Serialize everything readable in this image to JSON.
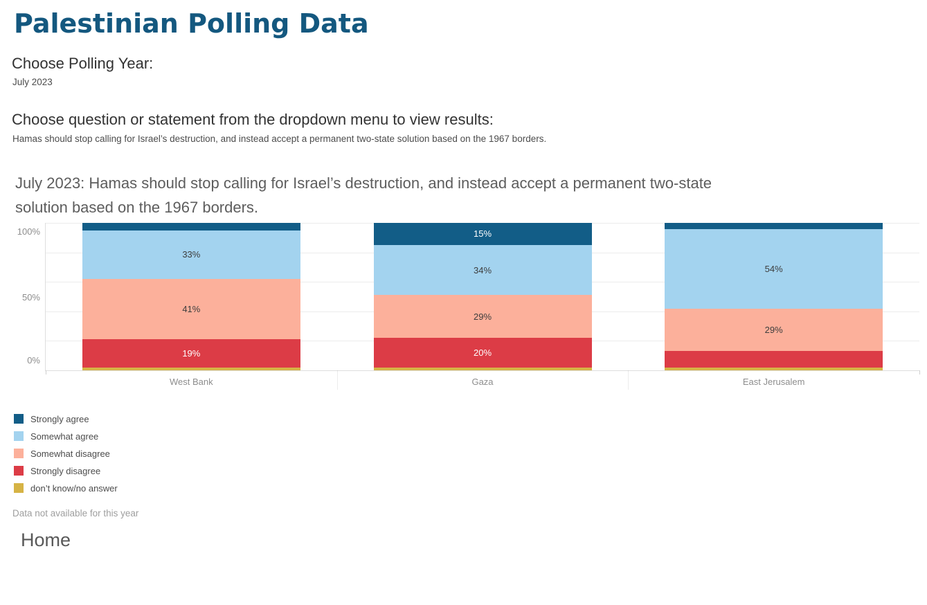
{
  "page": {
    "title": "Palestinian Polling Data",
    "year_section": {
      "label": "Choose Polling Year:",
      "value": "July 2023"
    },
    "question_section": {
      "label": "Choose question or statement from the dropdown menu to view results:",
      "value": "Hamas should stop calling for Israel’s destruction, and instead accept a permanent two-state solution based on the 1967 borders."
    },
    "chart_title_line1": "July 2023: Hamas should stop calling for Israel’s destruction, and instead accept a permanent two-state",
    "chart_title_line2": "solution based on the 1967 borders.",
    "footer_note": "Data not available for this year",
    "home_link": "Home"
  },
  "chart_data": {
    "type": "bar",
    "stacked": true,
    "normalized": true,
    "title": "July 2023: Hamas should stop calling for Israel’s destruction, and instead accept a permanent two-state solution based on the 1967 borders.",
    "categories": [
      "West Bank",
      "Gaza",
      "East Jerusalem"
    ],
    "xlabel": "",
    "ylabel": "",
    "ylim": [
      0,
      100
    ],
    "y_ticks": [
      "0%",
      "50%",
      "100%"
    ],
    "gridline_interval_pct": 20,
    "legend_position": "bottom-left",
    "series": [
      {
        "name": "Strongly agree",
        "color": "#125d87",
        "label_color": "#ffffff",
        "values": [
          5,
          15,
          4
        ],
        "labels": [
          null,
          "15%",
          null
        ]
      },
      {
        "name": "Somewhat agree",
        "color": "#a3d3ef",
        "label_color": "#3d3d3d",
        "values": [
          33,
          34,
          54
        ],
        "labels": [
          "33%",
          "34%",
          "54%"
        ]
      },
      {
        "name": "Somewhat disagree",
        "color": "#fcb09b",
        "label_color": "#3d3d3d",
        "values": [
          41,
          29,
          29
        ],
        "labels": [
          "41%",
          "29%",
          "29%"
        ]
      },
      {
        "name": "Strongly disagree",
        "color": "#dc3c46",
        "label_color": "#ffffff",
        "values": [
          19,
          20,
          11
        ],
        "labels": [
          "19%",
          "20%",
          null
        ]
      },
      {
        "name": "don’t know/no answer",
        "color": "#d6b345",
        "label_color": "#3d3d3d",
        "values": [
          2,
          2,
          2
        ],
        "labels": [
          null,
          null,
          null
        ]
      }
    ]
  }
}
